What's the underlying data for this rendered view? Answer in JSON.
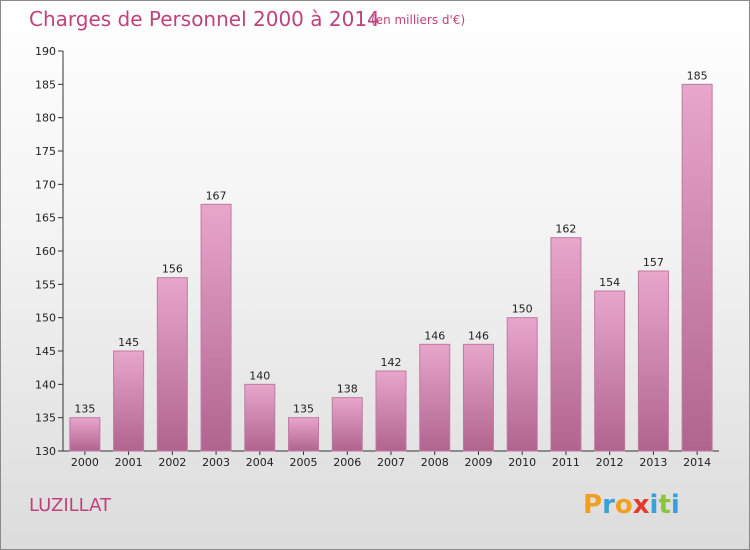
{
  "header": {
    "title": "Charges de Personnel 2000 à 2014",
    "subtitle": "(en milliers d'€)"
  },
  "footer": {
    "place": "LUZILLAT",
    "logo": {
      "letters": [
        "P",
        "r",
        "o",
        "x",
        "i",
        "t",
        "i"
      ],
      "colors": [
        "#f0a020",
        "#3aa0d8",
        "#f0a020",
        "#e53a2a",
        "#3aa0d8",
        "#8cc43c",
        "#3aa0d8"
      ]
    }
  },
  "chart_data": {
    "type": "bar",
    "title": "Charges de Personnel 2000 à 2014",
    "subtitle": "(en milliers d'€)",
    "categories": [
      "2000",
      "2001",
      "2002",
      "2003",
      "2004",
      "2005",
      "2006",
      "2007",
      "2008",
      "2009",
      "2010",
      "2011",
      "2012",
      "2013",
      "2014"
    ],
    "values": [
      135,
      145,
      156,
      167,
      140,
      135,
      138,
      142,
      146,
      146,
      150,
      162,
      154,
      157,
      185
    ],
    "ylim": [
      130,
      190
    ],
    "yticks": [
      130,
      135,
      140,
      145,
      150,
      155,
      160,
      165,
      170,
      175,
      180,
      185,
      190
    ],
    "grid": false,
    "colors": {
      "bar_top": "#e8a6cb",
      "bar_bottom": "#b0648e",
      "bar_edge": "#c07aa0",
      "text": "#222222"
    }
  }
}
